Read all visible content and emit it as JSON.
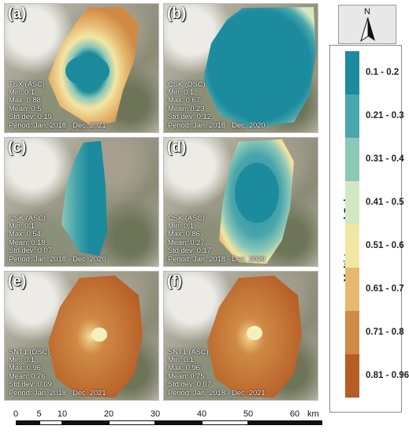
{
  "panels": [
    {
      "id": "a",
      "label": "(a)",
      "sensor": "TSX (ASC)",
      "min": "Min: 0.1",
      "max": "Max: 0.88",
      "mean": "Mean: 0.5",
      "std": "Std dev: 0.19",
      "period": "Period: Jan. 2018 - Dec. 2021"
    },
    {
      "id": "b",
      "label": "(b)",
      "sensor": "CSK (DSC)",
      "min": "Min: 0.1",
      "max": "Max: 0.67",
      "mean": "Mean: 0.23",
      "std": "Std dev: 0.12",
      "period": "Period: Jan. 2018 - Dec. 2020"
    },
    {
      "id": "c",
      "label": "(c)",
      "sensor": "CSK (ASC)",
      "min": "Min: 0.1",
      "max": "Max: 0.54",
      "mean": "Mean: 0.18",
      "std": "Std dev: 0.07",
      "period": "Period: Jan. 2018 - Dec. 2020"
    },
    {
      "id": "d",
      "label": "(d)",
      "sensor": "CSK (ASC)",
      "min": "Min: 0.1",
      "max": "Max: 0.86",
      "mean": "Mean: 0.27",
      "std": "Std dev: 0.17",
      "period": "Period: Jan. 2018 - Dec. 2020"
    },
    {
      "id": "e",
      "label": "(e)",
      "sensor": "SNT1 (DSC)",
      "min": "Min: 0.1",
      "max": "Max: 0.96",
      "mean": "Mean: 0.76",
      "std": "Std dev: 0.09",
      "period": "Period: Jan. 2018 - Dec. 2021"
    },
    {
      "id": "f",
      "label": "(f)",
      "sensor": "SNT1 (ASC)",
      "min": "Min: 0.1",
      "max": "Max: 0.96",
      "mean": "Mean: 0.75",
      "std": "Std dev: 0.07",
      "period": "Period: Jan. 2018 - Dec. 2021"
    }
  ],
  "north_arrow": {
    "letter": "N",
    "icon": "north-arrow-icon"
  },
  "legend": {
    "title": "Multi-temporal Coherence",
    "classes": [
      {
        "label": "0.1 - 0.2",
        "color": "#1c8b9d"
      },
      {
        "label": "0.21 - 0.3",
        "color": "#4aa6ad"
      },
      {
        "label": "0.31 - 0.4",
        "color": "#8cc7b7"
      },
      {
        "label": "0.41 - 0.5",
        "color": "#d2e8c0"
      },
      {
        "label": "0.51 - 0.6",
        "color": "#f3e6a4"
      },
      {
        "label": "0.61 - 0.7",
        "color": "#e6b871"
      },
      {
        "label": "0.71 - 0.8",
        "color": "#cf8a45"
      },
      {
        "label": "0.81 - 0.96",
        "color": "#b65d26"
      }
    ]
  },
  "scale_bar": {
    "ticks": [
      "0",
      "5",
      "10",
      "20",
      "30",
      "40",
      "50",
      "60"
    ],
    "unit": "km"
  }
}
